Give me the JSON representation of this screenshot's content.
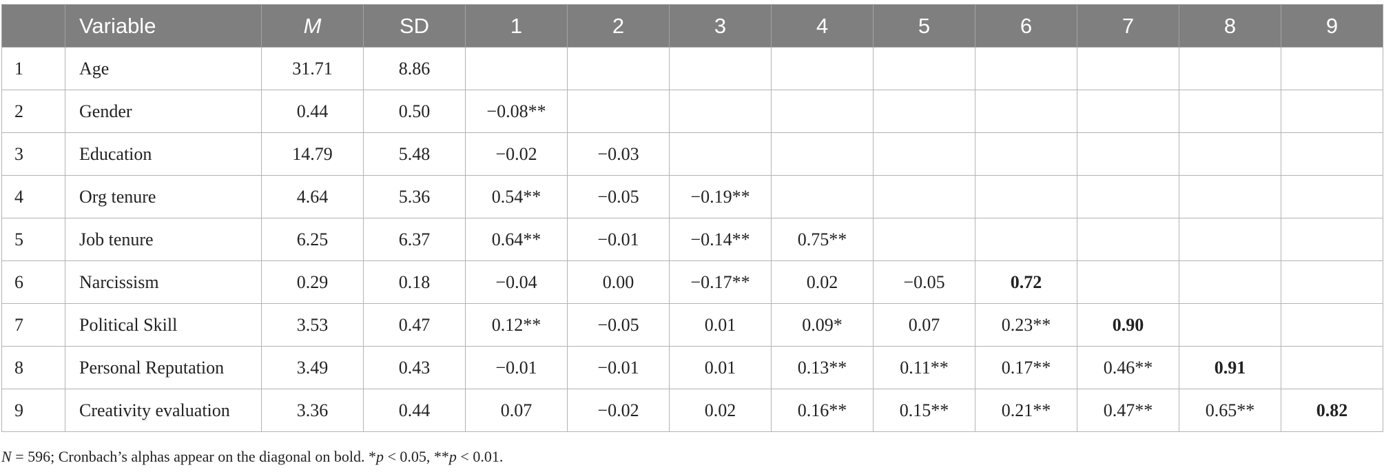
{
  "table": {
    "headers": [
      "",
      "Variable",
      "M",
      "SD",
      "1",
      "2",
      "3",
      "4",
      "5",
      "6",
      "7",
      "8",
      "9"
    ],
    "rows": [
      {
        "idx": "1",
        "variable": "Age",
        "m": "31.71",
        "sd": "8.86",
        "cells": [
          "",
          "",
          "",
          "",
          "",
          "",
          "",
          "",
          ""
        ]
      },
      {
        "idx": "2",
        "variable": "Gender",
        "m": "0.44",
        "sd": "0.50",
        "cells": [
          "−0.08**",
          "",
          "",
          "",
          "",
          "",
          "",
          "",
          ""
        ]
      },
      {
        "idx": "3",
        "variable": "Education",
        "m": "14.79",
        "sd": "5.48",
        "cells": [
          "−0.02",
          "−0.03",
          "",
          "",
          "",
          "",
          "",
          "",
          ""
        ]
      },
      {
        "idx": "4",
        "variable": "Org tenure",
        "m": "4.64",
        "sd": "5.36",
        "cells": [
          "0.54**",
          "−0.05",
          "−0.19**",
          "",
          "",
          "",
          "",
          "",
          ""
        ]
      },
      {
        "idx": "5",
        "variable": "Job tenure",
        "m": "6.25",
        "sd": "6.37",
        "cells": [
          "0.64**",
          "−0.01",
          "−0.14**",
          "0.75**",
          "",
          "",
          "",
          "",
          ""
        ]
      },
      {
        "idx": "6",
        "variable": "Narcissism",
        "m": "0.29",
        "sd": "0.18",
        "cells": [
          "−0.04",
          "0.00",
          "−0.17**",
          "0.02",
          "−0.05",
          "0.72",
          "",
          "",
          ""
        ]
      },
      {
        "idx": "7",
        "variable": "Political Skill",
        "m": "3.53",
        "sd": "0.47",
        "cells": [
          "0.12**",
          "−0.05",
          "0.01",
          "0.09*",
          "0.07",
          "0.23**",
          "0.90",
          "",
          ""
        ]
      },
      {
        "idx": "8",
        "variable": "Personal Reputation",
        "m": "3.49",
        "sd": "0.43",
        "cells": [
          "−0.01",
          "−0.01",
          "0.01",
          "0.13**",
          "0.11**",
          "0.17**",
          "0.46**",
          "0.91",
          ""
        ]
      },
      {
        "idx": "9",
        "variable": "Creativity evaluation",
        "m": "3.36",
        "sd": "0.44",
        "cells": [
          "0.07",
          "−0.02",
          "0.02",
          "0.16**",
          "0.15**",
          "0.21**",
          "0.47**",
          "0.65**",
          "0.82"
        ]
      }
    ]
  },
  "note": {
    "n_label": "N",
    "n_text": " = 596; Cronbach’s alphas appear on the diagonal on bold. *",
    "p1_label": "p",
    "p1_text": " < 0.05, **",
    "p2_label": "p",
    "p2_text": " < 0.01."
  }
}
